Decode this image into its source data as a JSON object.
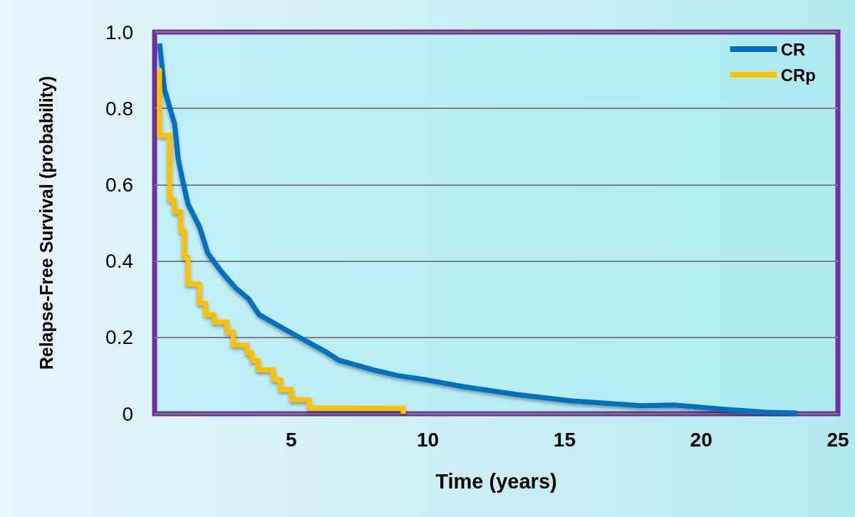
{
  "chart_data": {
    "type": "line",
    "xlabel": "Time (years)",
    "ylabel": "Relapse-Free Survival (probability)",
    "xlim": [
      0,
      25
    ],
    "xticks": [
      5,
      10,
      15,
      20,
      25
    ],
    "ylim": [
      0,
      1
    ],
    "yticks": [
      0,
      0.2,
      0.4,
      0.6,
      0.8,
      {
        "value": 1,
        "label": "1.0"
      }
    ],
    "grid": "y",
    "legend": "top right",
    "marker": "none",
    "line_style": "solid",
    "series": [
      {
        "name": "CR",
        "color": "#0070c0",
        "x": [
          0.18,
          0.36,
          0.73,
          0.86,
          1.0,
          1.22,
          1.64,
          1.95,
          2.47,
          2.96,
          3.45,
          3.82,
          4.55,
          5.3,
          6.2,
          6.75,
          8.0,
          8.9,
          10.0,
          11.3,
          13.3,
          15.2,
          17.8,
          19.0,
          20.6,
          22.3,
          23.5
        ],
        "values": [
          0.97,
          0.85,
          0.76,
          0.67,
          0.62,
          0.55,
          0.49,
          0.42,
          0.37,
          0.33,
          0.3,
          0.26,
          0.23,
          0.2,
          0.165,
          0.14,
          0.115,
          0.1,
          0.088,
          0.071,
          0.05,
          0.034,
          0.021,
          0.023,
          0.013,
          0.004,
          0.002
        ]
      },
      {
        "name": "CRp",
        "type": "step",
        "color": "#ffc000",
        "x": [
          0.15,
          0.18,
          0.55,
          0.73,
          0.96,
          1.09,
          1.22,
          1.64,
          1.87,
          2.18,
          2.65,
          2.88,
          3.38,
          3.56,
          3.79,
          4.34,
          4.6,
          5.01,
          5.66,
          9.1
        ],
        "values": [
          0.9,
          0.73,
          0.56,
          0.53,
          0.48,
          0.41,
          0.34,
          0.29,
          0.26,
          0.24,
          0.215,
          0.18,
          0.16,
          0.14,
          0.115,
          0.09,
          0.064,
          0.037,
          0.015,
          0.0
        ]
      }
    ]
  }
}
